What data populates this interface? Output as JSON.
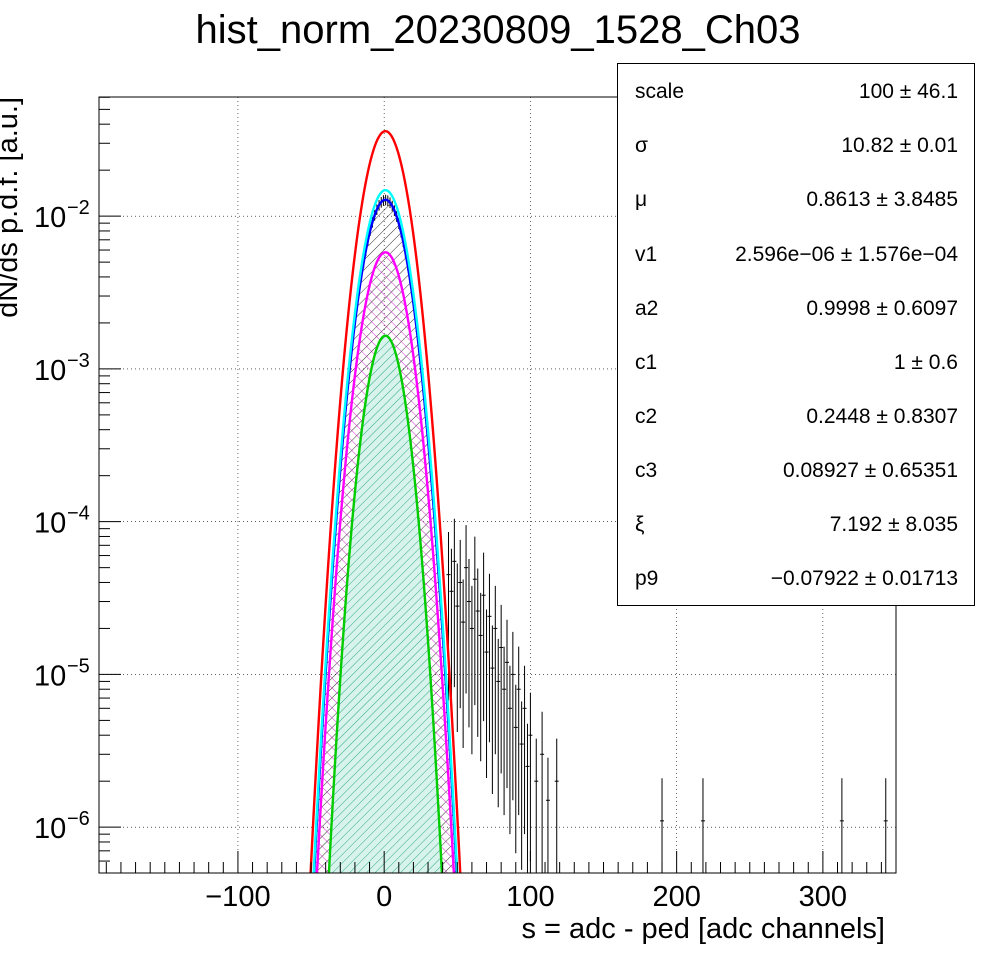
{
  "chart_data": {
    "type": "histogram",
    "title": "hist_norm_20230809_1528_Ch03",
    "xlabel": "s = adc - ped [adc channels]",
    "ylabel": "dN/ds p.d.f. [a.u.]",
    "xlim": [
      -195,
      350
    ],
    "ylim": [
      5e-07,
      0.06
    ],
    "yscale": "log",
    "grid": true,
    "x_ticks": [
      -100,
      0,
      100,
      200,
      300
    ],
    "x_tick_labels": [
      "−100",
      "0",
      "100",
      "200",
      "300"
    ],
    "y_ticks": [
      1e-06,
      1e-05,
      0.0001,
      0.001,
      0.01
    ],
    "y_tick_bases": [
      "10",
      "10",
      "10",
      "10",
      "10"
    ],
    "y_tick_exps": [
      "−6",
      "−5",
      "−4",
      "−3",
      "−2"
    ],
    "series": [
      {
        "color": "#ff0000",
        "kind": "gaussian",
        "amp": 0.036,
        "mu": 0.86,
        "sigma": 10.82,
        "fill": "none"
      },
      {
        "color": "#00ffff",
        "kind": "gaussian",
        "amp": 0.0148,
        "mu": 0.86,
        "sigma": 10.82,
        "fill": "none"
      },
      {
        "color": "#0000ff",
        "kind": "gaussian",
        "amp": 0.0128,
        "mu": 0.86,
        "sigma": 10.82,
        "fill": "hatch-black"
      },
      {
        "color": "#ff00ff",
        "kind": "gaussian",
        "amp": 0.0058,
        "mu": 0.86,
        "sigma": 10.82,
        "fill": "hatch-magenta"
      },
      {
        "color": "#00cc00",
        "kind": "gaussian",
        "amp": 0.00165,
        "mu": 0.86,
        "sigma": 9.6,
        "fill": "hatch-green"
      }
    ],
    "tail_points": [
      [
        44,
        4.5e-05
      ],
      [
        46,
        3.5e-05
      ],
      [
        48,
        5.5e-05
      ],
      [
        50,
        2.8e-05
      ],
      [
        52,
        4e-05
      ],
      [
        54,
        2.2e-05
      ],
      [
        56,
        5e-05
      ],
      [
        58,
        3e-05
      ],
      [
        60,
        2e-05
      ],
      [
        62,
        4.2e-05
      ],
      [
        64,
        2.6e-05
      ],
      [
        66,
        1.8e-05
      ],
      [
        68,
        3.3e-05
      ],
      [
        70,
        1.4e-05
      ],
      [
        72,
        2.4e-05
      ],
      [
        74,
        1.1e-05
      ],
      [
        76,
        2e-05
      ],
      [
        78,
        9e-06
      ],
      [
        80,
        1.5e-05
      ],
      [
        82,
        8e-06
      ],
      [
        84,
        1.2e-05
      ],
      [
        86,
        6e-06
      ],
      [
        88,
        1e-05
      ],
      [
        90,
        4.5e-06
      ],
      [
        92,
        8e-06
      ],
      [
        94,
        3.5e-06
      ],
      [
        96,
        6e-06
      ],
      [
        98,
        2.5e-06
      ],
      [
        100,
        4e-06
      ],
      [
        104,
        2e-06
      ],
      [
        108,
        3e-06
      ],
      [
        112,
        1.5e-06
      ],
      [
        118,
        2e-06
      ],
      [
        190,
        1.1e-06
      ],
      [
        218,
        1.1e-06
      ],
      [
        313,
        1.1e-06
      ],
      [
        343,
        1.1e-06
      ]
    ],
    "stats": [
      {
        "name": "scale",
        "value": "100 ± 46.1"
      },
      {
        "name": "σ",
        "value": "10.82 ± 0.01"
      },
      {
        "name": "μ",
        "value": "0.8613 ± 3.8485"
      },
      {
        "name": "v1",
        "value": "2.596e−06 ± 1.576e−04"
      },
      {
        "name": "a2",
        "value": "0.9998 ± 0.6097"
      },
      {
        "name": "c1",
        "value": "1 ± 0.6"
      },
      {
        "name": "c2",
        "value": "0.2448 ± 0.8307"
      },
      {
        "name": "c3",
        "value": "0.08927 ± 0.65351"
      },
      {
        "name": "ξ",
        "value": "7.192 ± 8.035"
      },
      {
        "name": "p9",
        "value": "−0.07922 ± 0.01713"
      }
    ]
  }
}
